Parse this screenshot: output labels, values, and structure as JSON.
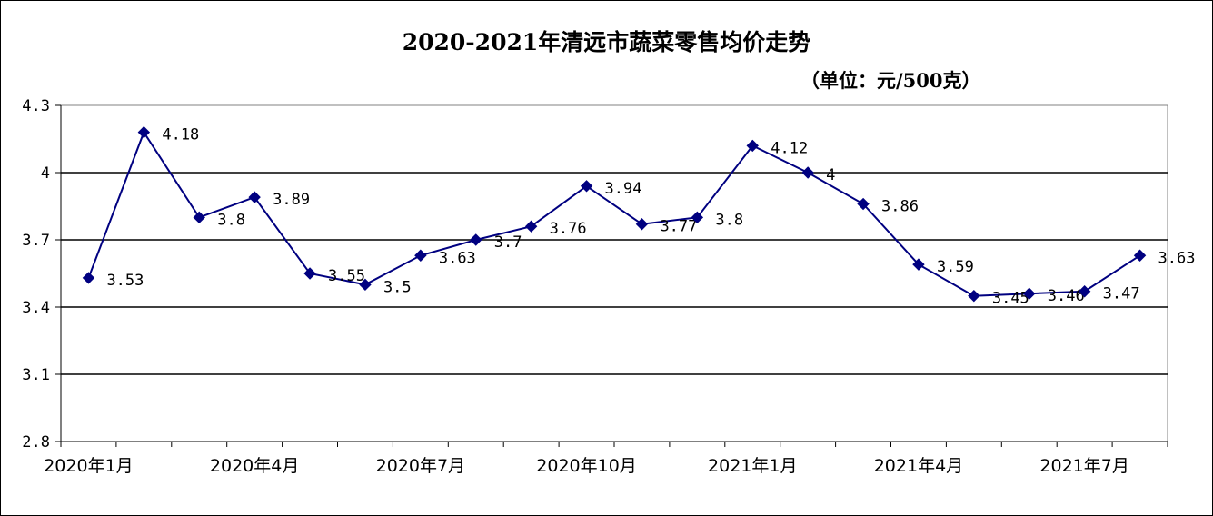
{
  "chart_data": {
    "type": "line",
    "title": "2020-2021年清远市蔬菜零售均价走势",
    "subtitle": "（单位：元/500克）",
    "ylim": [
      2.8,
      4.3
    ],
    "yticks": [
      "4.3",
      "4",
      "3.7",
      "3.4",
      "3.1",
      "2.8"
    ],
    "yticks_values": [
      4.3,
      4.0,
      3.7,
      3.4,
      3.1,
      2.8
    ],
    "grid": true,
    "x": [
      "2020年1月",
      "2020年2月",
      "2020年3月",
      "2020年4月",
      "2020年5月",
      "2020年6月",
      "2020年7月",
      "2020年8月",
      "2020年9月",
      "2020年10月",
      "2020年11月",
      "2020年12月",
      "2021年1月",
      "2021年2月",
      "2021年3月",
      "2021年4月",
      "2021年5月",
      "2021年6月",
      "2021年7月",
      "2021年8月"
    ],
    "xtick_labels": [
      {
        "index": 0,
        "label": "2020年1月"
      },
      {
        "index": 3,
        "label": "2020年4月"
      },
      {
        "index": 6,
        "label": "2020年7月"
      },
      {
        "index": 9,
        "label": "2020年10月"
      },
      {
        "index": 12,
        "label": "2021年1月"
      },
      {
        "index": 15,
        "label": "2021年4月"
      },
      {
        "index": 18,
        "label": "2021年7月"
      }
    ],
    "values": [
      3.53,
      4.18,
      3.8,
      3.89,
      3.55,
      3.5,
      3.63,
      3.7,
      3.76,
      3.94,
      3.77,
      3.8,
      4.12,
      4.0,
      3.86,
      3.59,
      3.45,
      3.46,
      3.47,
      3.63
    ],
    "data_labels": [
      "3.53",
      "4.18",
      "3.8",
      "3.89",
      "3.55",
      "3.5",
      "3.63",
      "3.7",
      "3.76",
      "3.94",
      "3.77",
      "3.8",
      "4.12",
      "4",
      "3.86",
      "3.59",
      "3.45",
      "3.46",
      "3.47",
      "3.63"
    ],
    "line_color": "#000080",
    "marker": "diamond"
  }
}
